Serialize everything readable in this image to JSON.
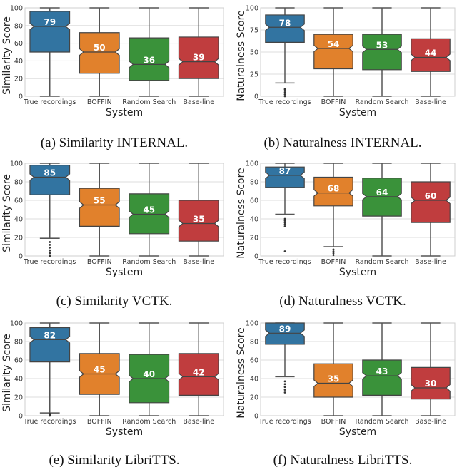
{
  "chart_data": [
    {
      "type": "box",
      "caption": "(a) Similarity INTERNAL.",
      "ylabel": "Similarity Score",
      "xlabel": "System",
      "ylim": [
        0,
        100
      ],
      "yticks": [
        0,
        20,
        40,
        60,
        80,
        100
      ],
      "grid": true,
      "categories": [
        "True recordings",
        "BOFFIN",
        "Random Search",
        "Base-line"
      ],
      "boxes": [
        {
          "whislo": 0,
          "q1": 50,
          "med": 79,
          "q3": 96,
          "whishi": 100,
          "fliers": []
        },
        {
          "whislo": 0,
          "q1": 26,
          "med": 50,
          "q3": 72,
          "whishi": 100,
          "fliers": []
        },
        {
          "whislo": 0,
          "q1": 18,
          "med": 36,
          "q3": 66,
          "whishi": 100,
          "fliers": []
        },
        {
          "whislo": 0,
          "q1": 20,
          "med": 39,
          "q3": 67,
          "whishi": 100,
          "fliers": []
        }
      ]
    },
    {
      "type": "box",
      "caption": "(b) Naturalness INTERNAL.",
      "ylabel": "Naturalness Score",
      "xlabel": "System",
      "ylim": [
        0,
        100
      ],
      "yticks": [
        0,
        25,
        50,
        75,
        100
      ],
      "grid": true,
      "categories": [
        "True recordings",
        "BOFFIN",
        "Random Search",
        "Base-line"
      ],
      "boxes": [
        {
          "whislo": 15,
          "q1": 61,
          "med": 78,
          "q3": 92,
          "whishi": 100,
          "fliers": [
            0,
            2,
            4,
            6,
            8
          ]
        },
        {
          "whislo": 0,
          "q1": 31,
          "med": 54,
          "q3": 70,
          "whishi": 100,
          "fliers": []
        },
        {
          "whislo": 0,
          "q1": 30,
          "med": 53,
          "q3": 70,
          "whishi": 100,
          "fliers": []
        },
        {
          "whislo": 0,
          "q1": 28,
          "med": 44,
          "q3": 65,
          "whishi": 100,
          "fliers": []
        }
      ]
    },
    {
      "type": "box",
      "caption": "(c) Similarity VCTK.",
      "ylabel": "Similarity Score",
      "xlabel": "System",
      "ylim": [
        0,
        100
      ],
      "yticks": [
        0,
        20,
        40,
        60,
        80,
        100
      ],
      "grid": true,
      "categories": [
        "True recordings",
        "BOFFIN",
        "Random Search",
        "Base-line"
      ],
      "boxes": [
        {
          "whislo": 19,
          "q1": 66,
          "med": 85,
          "q3": 98,
          "whishi": 100,
          "fliers": [
            0,
            3,
            6,
            9,
            12,
            15
          ]
        },
        {
          "whislo": 0,
          "q1": 32,
          "med": 55,
          "q3": 73,
          "whishi": 100,
          "fliers": []
        },
        {
          "whislo": 0,
          "q1": 24,
          "med": 45,
          "q3": 67,
          "whishi": 100,
          "fliers": []
        },
        {
          "whislo": 0,
          "q1": 16,
          "med": 35,
          "q3": 60,
          "whishi": 100,
          "fliers": []
        }
      ]
    },
    {
      "type": "box",
      "caption": "(d) Naturalness VCTK.",
      "ylabel": "Naturalness Score",
      "xlabel": "System",
      "ylim": [
        0,
        100
      ],
      "yticks": [
        0,
        20,
        40,
        60,
        80,
        100
      ],
      "grid": true,
      "categories": [
        "True recordings",
        "BOFFIN",
        "Random Search",
        "Base-line"
      ],
      "boxes": [
        {
          "whislo": 45,
          "q1": 74,
          "med": 87,
          "q3": 96,
          "whishi": 100,
          "fliers": [
            5,
            32,
            34,
            36,
            38,
            40
          ]
        },
        {
          "whislo": 10,
          "q1": 54,
          "med": 68,
          "q3": 85,
          "whishi": 100,
          "fliers": [
            1,
            3,
            5,
            7
          ]
        },
        {
          "whislo": 0,
          "q1": 43,
          "med": 64,
          "q3": 84,
          "whishi": 100,
          "fliers": []
        },
        {
          "whislo": 0,
          "q1": 36,
          "med": 60,
          "q3": 80,
          "whishi": 100,
          "fliers": []
        }
      ]
    },
    {
      "type": "box",
      "caption": "(e) Similarity LibriTTS.",
      "ylabel": "Similarity Score",
      "xlabel": "System",
      "ylim": [
        0,
        100
      ],
      "yticks": [
        0,
        20,
        40,
        60,
        80,
        100
      ],
      "grid": true,
      "categories": [
        "True recordings",
        "BOFFIN",
        "Random Search",
        "Base-line"
      ],
      "boxes": [
        {
          "whislo": 3,
          "q1": 58,
          "med": 82,
          "q3": 95,
          "whishi": 100,
          "fliers": [
            0,
            1,
            2
          ]
        },
        {
          "whislo": 0,
          "q1": 23,
          "med": 45,
          "q3": 67,
          "whishi": 100,
          "fliers": []
        },
        {
          "whislo": 0,
          "q1": 14,
          "med": 40,
          "q3": 66,
          "whishi": 100,
          "fliers": []
        },
        {
          "whislo": 0,
          "q1": 22,
          "med": 42,
          "q3": 67,
          "whishi": 100,
          "fliers": []
        }
      ]
    },
    {
      "type": "box",
      "caption": "(f) Naturalness LibriTTS.",
      "ylabel": "Naturalness Score",
      "xlabel": "System",
      "ylim": [
        0,
        100
      ],
      "yticks": [
        0,
        20,
        40,
        60,
        80,
        100
      ],
      "grid": true,
      "categories": [
        "True recordings",
        "BOFFIN",
        "Random Search",
        "Base-line"
      ],
      "boxes": [
        {
          "whislo": 42,
          "q1": 77,
          "med": 89,
          "q3": 100,
          "whishi": 100,
          "fliers": [
            25,
            28,
            31,
            34,
            37
          ]
        },
        {
          "whislo": 0,
          "q1": 20,
          "med": 35,
          "q3": 56,
          "whishi": 100,
          "fliers": []
        },
        {
          "whislo": 0,
          "q1": 22,
          "med": 43,
          "q3": 60,
          "whishi": 100,
          "fliers": []
        },
        {
          "whislo": 0,
          "q1": 18,
          "med": 30,
          "q3": 52,
          "whishi": 100,
          "fliers": []
        }
      ]
    }
  ],
  "colors": [
    "#3274a1",
    "#e1812c",
    "#3a923a",
    "#c03d3e"
  ]
}
